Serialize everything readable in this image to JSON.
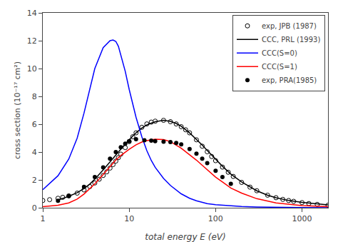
{
  "chart_data": {
    "type": "line",
    "xlabel": "total energy E (eV)",
    "ylabel": "cross section (10⁻¹⁷ cm²)",
    "log": "x",
    "xlim": [
      1,
      2000
    ],
    "ylim": [
      0,
      14
    ],
    "xticks": [
      1,
      10,
      100,
      1000
    ],
    "yticks": [
      0,
      2,
      4,
      6,
      8,
      10,
      12,
      14
    ],
    "grid": false,
    "legend": "upper right",
    "series": [
      {
        "name": "exp, JPB (1987)",
        "type": "scatter",
        "color": "black",
        "marker": "circle-open",
        "x": [
          1.0,
          1.2,
          1.5,
          1.7,
          2.0,
          2.5,
          3.0,
          3.5,
          4.0,
          4.5,
          5.0,
          5.5,
          6.0,
          6.5,
          7.0,
          7.5,
          8.0,
          9.0,
          10.0,
          11.0,
          12.0,
          14.0,
          16.0,
          18.0,
          20.0,
          25.0,
          30.0,
          35.0,
          40.0,
          45.0,
          50.0,
          60.0,
          70.0,
          80.0,
          90.0,
          100.0,
          120.0,
          140.0,
          160.0,
          200.0,
          250.0,
          300.0,
          400.0,
          500.0,
          600.0,
          700.0,
          800.0,
          1000.0,
          1200.0,
          1500.0,
          2000.0
        ],
        "values": [
          0.52,
          0.58,
          0.68,
          0.75,
          0.85,
          1.05,
          1.28,
          1.52,
          1.78,
          2.05,
          2.32,
          2.58,
          2.85,
          3.1,
          3.35,
          3.6,
          3.85,
          4.32,
          4.75,
          5.1,
          5.38,
          5.78,
          6.02,
          6.15,
          6.22,
          6.28,
          6.18,
          6.02,
          5.82,
          5.6,
          5.38,
          4.88,
          4.42,
          4.02,
          3.68,
          3.38,
          2.92,
          2.55,
          2.25,
          1.82,
          1.48,
          1.22,
          0.9,
          0.72,
          0.6,
          0.52,
          0.46,
          0.37,
          0.3,
          0.24,
          0.18
        ]
      },
      {
        "name": "CCC, PRL (1993)",
        "type": "line",
        "color": "black",
        "x": [
          1.5,
          2.0,
          2.5,
          3.0,
          3.5,
          4.0,
          5.0,
          6.0,
          7.0,
          8.0,
          9.0,
          10.0,
          12.0,
          14.0,
          16.0,
          18.0,
          20.0,
          25.0,
          30.0,
          35.0,
          40.0,
          50.0,
          60.0,
          70.0,
          80.0,
          100.0,
          120.0,
          150.0,
          200.0,
          300.0,
          400.0,
          500.0,
          700.0,
          1000.0,
          1500.0,
          2000.0
        ],
        "values": [
          0.55,
          0.82,
          1.08,
          1.38,
          1.7,
          2.05,
          2.72,
          3.3,
          3.82,
          4.22,
          4.58,
          4.88,
          5.38,
          5.72,
          5.95,
          6.08,
          6.18,
          6.28,
          6.2,
          6.05,
          5.85,
          5.38,
          4.92,
          4.5,
          4.12,
          3.48,
          2.98,
          2.42,
          1.85,
          1.22,
          0.9,
          0.72,
          0.52,
          0.38,
          0.27,
          0.2
        ]
      },
      {
        "name": "CCC(S=0)",
        "type": "line",
        "color": "blue",
        "x": [
          1.0,
          1.5,
          2.0,
          2.5,
          3.0,
          3.5,
          4.0,
          5.0,
          6.0,
          6.5,
          7.0,
          7.5,
          8.0,
          9.0,
          10.0,
          12.0,
          14.0,
          16.0,
          18.0,
          20.0,
          25.0,
          30.0,
          40.0,
          50.0,
          60.0,
          80.0,
          100.0,
          150.0,
          200.0,
          300.0,
          500.0,
          1000.0,
          2000.0
        ],
        "values": [
          1.3,
          2.3,
          3.5,
          5.0,
          6.8,
          8.5,
          10.0,
          11.5,
          12.0,
          12.05,
          11.95,
          11.6,
          11.0,
          9.8,
          8.5,
          6.5,
          5.1,
          4.1,
          3.4,
          2.9,
          2.1,
          1.6,
          1.0,
          0.68,
          0.5,
          0.3,
          0.22,
          0.12,
          0.085,
          0.052,
          0.028,
          0.012,
          0.006
        ]
      },
      {
        "name": "CCC(S=1)",
        "type": "line",
        "color": "red",
        "x": [
          1.0,
          1.5,
          2.0,
          2.5,
          3.0,
          4.0,
          5.0,
          6.0,
          7.0,
          8.0,
          9.0,
          10.0,
          12.0,
          14.0,
          16.0,
          18.0,
          20.0,
          25.0,
          30.0,
          40.0,
          50.0,
          60.0,
          70.0,
          80.0,
          100.0,
          120.0,
          150.0,
          200.0,
          300.0,
          500.0,
          1000.0,
          2000.0
        ],
        "values": [
          0.08,
          0.18,
          0.35,
          0.62,
          0.98,
          1.72,
          2.38,
          2.95,
          3.42,
          3.75,
          4.0,
          4.2,
          4.52,
          4.72,
          4.82,
          4.88,
          4.92,
          4.9,
          4.75,
          4.28,
          3.82,
          3.42,
          3.05,
          2.72,
          2.2,
          1.85,
          1.42,
          1.05,
          0.65,
          0.35,
          0.16,
          0.08
        ]
      },
      {
        "name": "exp, PRA(1985)",
        "type": "scatter",
        "color": "black",
        "marker": "circle",
        "x": [
          1.5,
          2.0,
          3.0,
          4.0,
          5.0,
          6.0,
          7.0,
          8.0,
          9.0,
          10.0,
          12.0,
          15.0,
          18.0,
          20.0,
          25.0,
          30.0,
          35.0,
          40.0,
          50.0,
          60.0,
          70.0,
          80.0,
          100.0,
          120.0,
          150.0
        ],
        "values": [
          0.5,
          0.85,
          1.5,
          2.2,
          2.9,
          3.52,
          4.0,
          4.35,
          4.6,
          4.78,
          4.92,
          4.85,
          4.82,
          4.78,
          4.75,
          4.72,
          4.65,
          4.55,
          4.22,
          3.88,
          3.52,
          3.2,
          2.65,
          2.2,
          1.72
        ]
      }
    ]
  }
}
